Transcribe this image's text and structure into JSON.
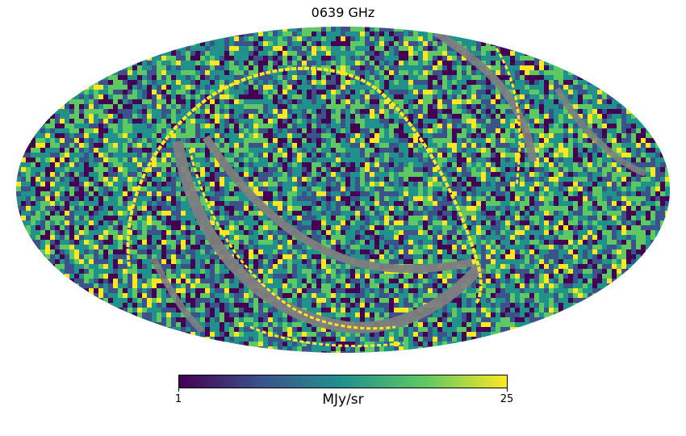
{
  "chart_data": {
    "type": "heatmap",
    "projection": "mollweide",
    "title": "0639 GHz",
    "colormap": "viridis",
    "bad_color": "#808080",
    "colorbar": {
      "min_label": "1",
      "max_label": "25",
      "unit": "MJy/sr",
      "vmin": 1,
      "vmax": 25
    },
    "colors": [
      "#440154",
      "#3b528b",
      "#21918c",
      "#5ec962",
      "#fde725"
    ],
    "scan_arcs_color": "#fde725",
    "grid": false
  }
}
